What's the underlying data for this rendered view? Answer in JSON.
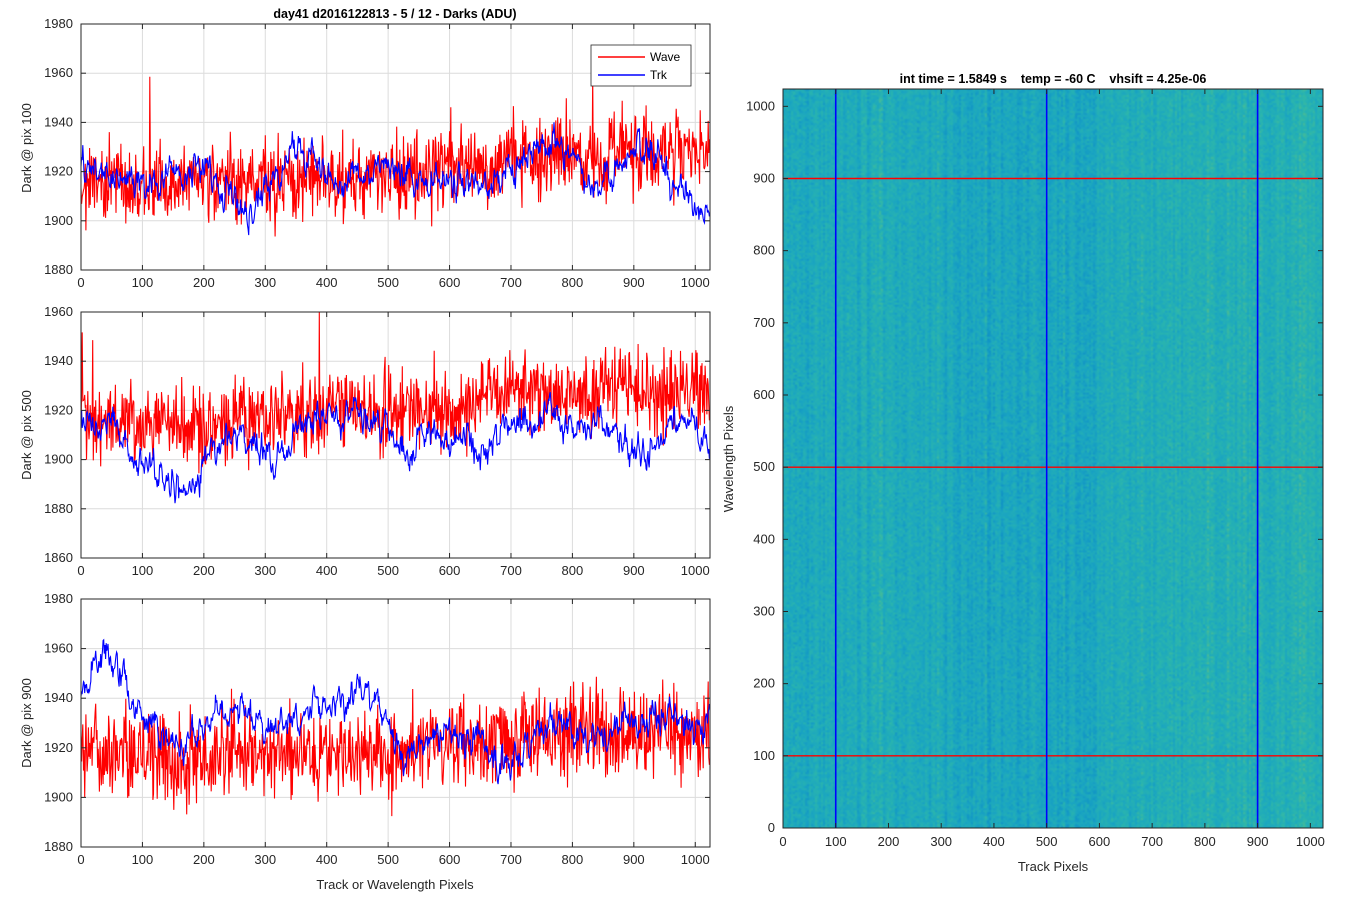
{
  "figure": {
    "colors": {
      "wave": "#ff0000",
      "trk": "#0000ff",
      "grid": "#dcdcdc",
      "axis": "#262626"
    }
  },
  "chart_data": [
    {
      "id": "top",
      "type": "line",
      "title": "day41 d2016122813 - 5 / 12 - Darks (ADU)",
      "ylabel": "Dark @ pix 100",
      "xlabel": "",
      "xlim": [
        0,
        1024
      ],
      "ylim": [
        1880,
        1980
      ],
      "xticks": [
        0,
        100,
        200,
        300,
        400,
        500,
        600,
        700,
        800,
        900,
        1000
      ],
      "yticks": [
        1880,
        1900,
        1920,
        1940,
        1960,
        1980
      ],
      "grid": true,
      "legend": {
        "position": "top-right",
        "entries": [
          "Wave",
          "Trk"
        ]
      },
      "series": [
        {
          "name": "Wave",
          "color": "#ff0000",
          "n": 1024,
          "amp": 8,
          "trend": [
            [
              0,
              1916
            ],
            [
              300,
              1915
            ],
            [
              500,
              1918
            ],
            [
              700,
              1924
            ],
            [
              900,
              1928
            ],
            [
              1024,
              1927
            ]
          ]
        },
        {
          "name": "Trk",
          "color": "#0000ff",
          "n": 1024,
          "amp": 5,
          "trend": [
            [
              0,
              1922
            ],
            [
              100,
              1915
            ],
            [
              200,
              1921
            ],
            [
              280,
              1903
            ],
            [
              350,
              1932
            ],
            [
              420,
              1915
            ],
            [
              480,
              1922
            ],
            [
              560,
              1917
            ],
            [
              620,
              1918
            ],
            [
              660,
              1912
            ],
            [
              760,
              1932
            ],
            [
              850,
              1915
            ],
            [
              920,
              1933
            ],
            [
              990,
              1905
            ],
            [
              1024,
              1905
            ]
          ]
        }
      ]
    },
    {
      "id": "middle",
      "type": "line",
      "title": "",
      "ylabel": "Dark @ pix 500",
      "xlabel": "",
      "xlim": [
        0,
        1024
      ],
      "ylim": [
        1860,
        1960
      ],
      "xticks": [
        0,
        100,
        200,
        300,
        400,
        500,
        600,
        700,
        800,
        900,
        1000
      ],
      "yticks": [
        1860,
        1880,
        1900,
        1920,
        1940,
        1960
      ],
      "grid": true,
      "series": [
        {
          "name": "Wave",
          "color": "#ff0000",
          "n": 1024,
          "amp": 8,
          "trend": [
            [
              0,
              1918
            ],
            [
              200,
              1914
            ],
            [
              400,
              1920
            ],
            [
              600,
              1920
            ],
            [
              700,
              1928
            ],
            [
              1024,
              1928
            ]
          ]
        },
        {
          "name": "Trk",
          "color": "#0000ff",
          "n": 1024,
          "amp": 5,
          "trend": [
            [
              0,
              1916
            ],
            [
              60,
              1913
            ],
            [
              120,
              1893
            ],
            [
              170,
              1889
            ],
            [
              240,
              1910
            ],
            [
              310,
              1902
            ],
            [
              380,
              1918
            ],
            [
              430,
              1923
            ],
            [
              470,
              1917
            ],
            [
              530,
              1907
            ],
            [
              600,
              1911
            ],
            [
              650,
              1904
            ],
            [
              700,
              1916
            ],
            [
              760,
              1916
            ],
            [
              820,
              1915
            ],
            [
              870,
              1909
            ],
            [
              930,
              1900
            ],
            [
              970,
              1917
            ],
            [
              1024,
              1907
            ]
          ]
        }
      ]
    },
    {
      "id": "bottom",
      "type": "line",
      "title": "",
      "ylabel": "Dark @ pix 900",
      "xlabel": "Track or Wavelength Pixels",
      "xlim": [
        0,
        1024
      ],
      "ylim": [
        1880,
        1980
      ],
      "xticks": [
        0,
        100,
        200,
        300,
        400,
        500,
        600,
        700,
        800,
        900,
        1000
      ],
      "yticks": [
        1880,
        1900,
        1920,
        1940,
        1960,
        1980
      ],
      "grid": true,
      "series": [
        {
          "name": "Wave",
          "color": "#ff0000",
          "n": 1024,
          "amp": 9,
          "trend": [
            [
              0,
              1917
            ],
            [
              300,
              1916
            ],
            [
              500,
              1917
            ],
            [
              700,
              1925
            ],
            [
              900,
              1926
            ],
            [
              1024,
              1925
            ]
          ]
        },
        {
          "name": "Trk",
          "color": "#0000ff",
          "n": 1024,
          "amp": 5,
          "trend": [
            [
              0,
              1943
            ],
            [
              40,
              1960
            ],
            [
              100,
              1933
            ],
            [
              160,
              1918
            ],
            [
              210,
              1930
            ],
            [
              260,
              1938
            ],
            [
              330,
              1926
            ],
            [
              400,
              1938
            ],
            [
              460,
              1945
            ],
            [
              520,
              1918
            ],
            [
              560,
              1925
            ],
            [
              630,
              1924
            ],
            [
              700,
              1914
            ],
            [
              760,
              1930
            ],
            [
              830,
              1922
            ],
            [
              900,
              1932
            ],
            [
              1024,
              1930
            ]
          ]
        }
      ]
    },
    {
      "id": "heatmap",
      "type": "heatmap",
      "title": "int time = 1.5849 s    temp = -60 C    vhsift = 4.25e-06",
      "xlabel": "Track Pixels",
      "ylabel": "Wavelength Pixels",
      "xlim": [
        0,
        1024
      ],
      "ylim": [
        0,
        1024
      ],
      "xticks": [
        0,
        100,
        200,
        300,
        400,
        500,
        600,
        700,
        800,
        900,
        1000
      ],
      "yticks": [
        0,
        100,
        200,
        300,
        400,
        500,
        600,
        700,
        800,
        900,
        1000
      ],
      "colormap": [
        "#0a87c8",
        "#1aa5c2",
        "#2bb6ad",
        "#5fbf84",
        "#9dc45c"
      ],
      "vertical_lines": {
        "x": [
          100,
          500,
          900
        ],
        "color": "#0000ff"
      },
      "horizontal_lines": {
        "y": [
          100,
          500,
          900
        ],
        "color": "#ff0000"
      }
    }
  ]
}
